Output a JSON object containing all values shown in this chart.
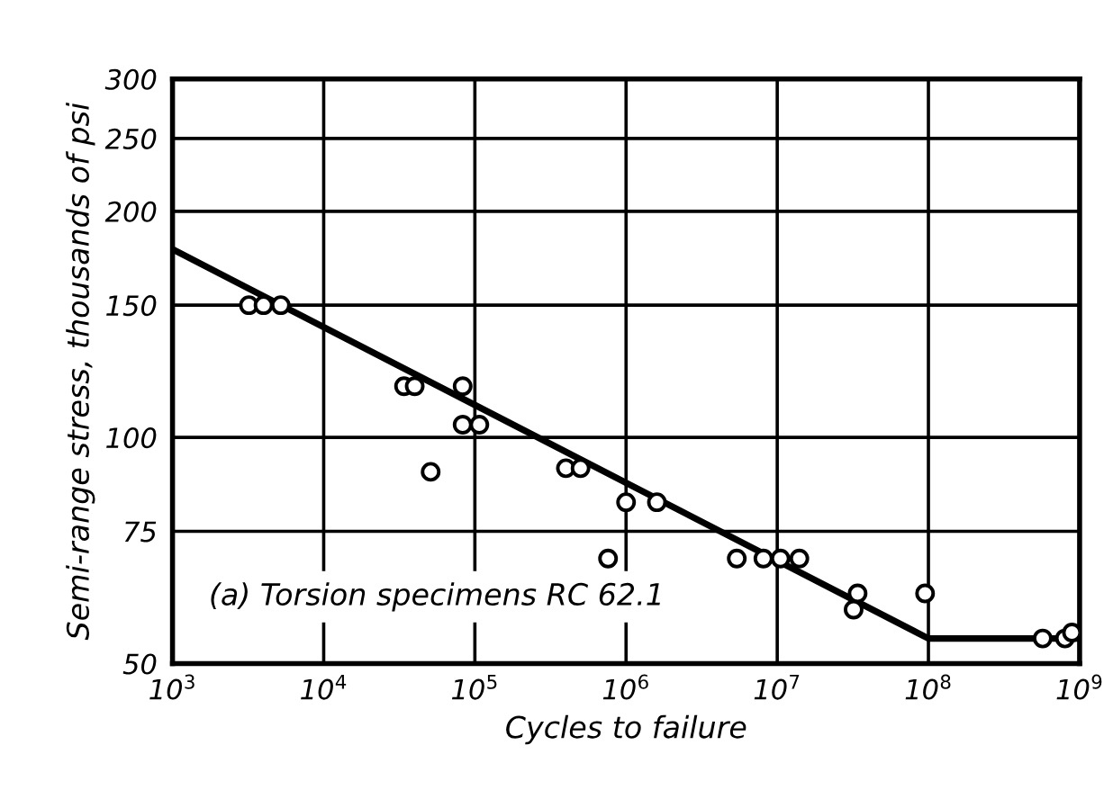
{
  "chart_data": {
    "type": "scatter",
    "xlabel": "Cycles to failure",
    "ylabel": "Semi-range stress, thousands of psi",
    "log": "xy",
    "annotations": [
      "(a) Torsion specimens RC 62.1"
    ],
    "series": [
      {
        "color": "#000000",
        "marker": "circle",
        "x": [
          3200,
          4000,
          5200,
          34000,
          40000,
          83000,
          83000,
          107000,
          51000,
          400000,
          500000,
          1000000,
          1600000,
          760000,
          5400000,
          8100000,
          10500000,
          14000000,
          34000000,
          32000000,
          95000000,
          570000000,
          800000000,
          890000000
        ],
        "values": [
          150,
          150,
          150,
          117,
          117,
          117,
          104,
          104,
          90,
          91,
          91,
          82,
          82,
          69,
          69,
          69,
          69,
          69,
          62,
          59,
          62,
          54,
          54,
          55
        ]
      },
      {
        "type": "line",
        "color": "#000000",
        "marker": "none",
        "line_style": "solid",
        "x": [
          1000,
          100000000,
          1000000000
        ],
        "values": [
          178,
          54,
          54
        ]
      }
    ],
    "xlim": [
      1000,
      1000000000
    ],
    "ylim": [
      50,
      300
    ],
    "xticks": [
      {
        "value": 1000,
        "label": "10$^{3}$"
      },
      {
        "value": 10000,
        "label": "10$^{4}$"
      },
      {
        "value": 100000,
        "label": "10$^{5}$"
      },
      {
        "value": 1000000,
        "label": "10$^{6}$"
      },
      {
        "value": 10000000,
        "label": "10$^{7}$"
      },
      {
        "value": 100000000,
        "label": "10$^{8}$"
      },
      {
        "value": 1000000000,
        "label": "10$^{9}$"
      }
    ],
    "yticks": [
      50,
      75,
      100,
      150,
      200,
      250,
      300
    ],
    "grid": true
  }
}
